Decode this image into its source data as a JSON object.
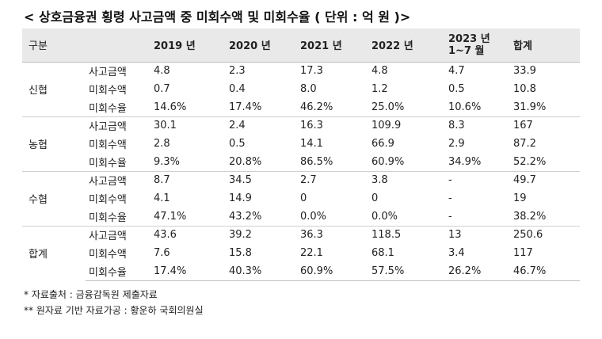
{
  "title": "< 상호금융권 횡령 사고금액 중 미회수액 및 미회수율 ( 단위 : 억 원 )>",
  "table": {
    "headers": [
      "구분",
      "",
      "2019 년",
      "2020 년",
      "2021 년",
      "2022 년",
      [
        "2023 년",
        "1~7 월"
      ],
      "합계"
    ],
    "groups": [
      {
        "name": "신협",
        "rows": [
          {
            "metric": "사고금액",
            "values": [
              "4.8",
              "2.3",
              "17.3",
              "4.8",
              "4.7",
              "33.9"
            ]
          },
          {
            "metric": "미회수액",
            "values": [
              "0.7",
              "0.4",
              "8.0",
              "1.2",
              "0.5",
              "10.8"
            ]
          },
          {
            "metric": "미회수율",
            "values": [
              "14.6%",
              "17.4%",
              "46.2%",
              "25.0%",
              "10.6%",
              "31.9%"
            ]
          }
        ]
      },
      {
        "name": "농협",
        "rows": [
          {
            "metric": "사고금액",
            "values": [
              "30.1",
              "2.4",
              "16.3",
              "109.9",
              "8.3",
              "167"
            ]
          },
          {
            "metric": "미회수액",
            "values": [
              "2.8",
              "0.5",
              "14.1",
              "66.9",
              "2.9",
              "87.2"
            ]
          },
          {
            "metric": "미회수율",
            "values": [
              "9.3%",
              "20.8%",
              "86.5%",
              "60.9%",
              "34.9%",
              "52.2%"
            ]
          }
        ]
      },
      {
        "name": "수협",
        "rows": [
          {
            "metric": "사고금액",
            "values": [
              "8.7",
              "34.5",
              "2.7",
              "3.8",
              "-",
              "49.7"
            ]
          },
          {
            "metric": "미회수액",
            "values": [
              "4.1",
              "14.9",
              "0",
              "0",
              "-",
              "19"
            ]
          },
          {
            "metric": "미회수율",
            "values": [
              "47.1%",
              "43.2%",
              "0.0%",
              "0.0%",
              "-",
              "38.2%"
            ]
          }
        ]
      },
      {
        "name": "합계",
        "rows": [
          {
            "metric": "사고금액",
            "values": [
              "43.6",
              "39.2",
              "36.3",
              "118.5",
              "13",
              "250.6"
            ]
          },
          {
            "metric": "미회수액",
            "values": [
              "7.6",
              "15.8",
              "22.1",
              "68.1",
              "3.4",
              "117"
            ]
          },
          {
            "metric": "미회수율",
            "values": [
              "17.4%",
              "40.3%",
              "60.9%",
              "57.5%",
              "26.2%",
              "46.7%"
            ]
          }
        ]
      }
    ]
  },
  "notes": [
    "* 자료출처 : 금융감독원 제출자료",
    "** 원자료 기반 자료가공 : 황운하 국회의원실"
  ]
}
